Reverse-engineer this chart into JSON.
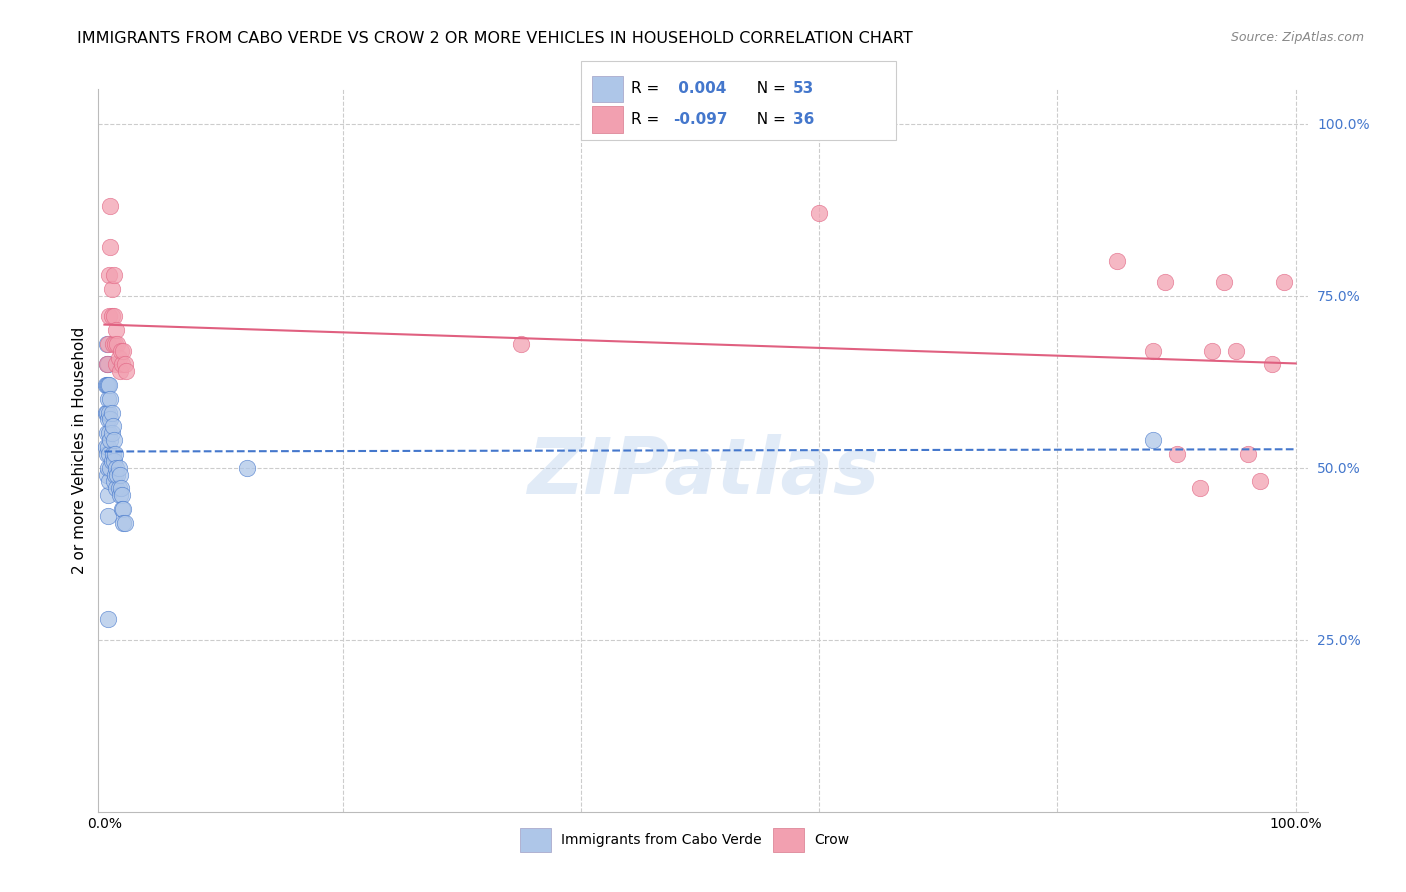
{
  "title": "IMMIGRANTS FROM CABO VERDE VS CROW 2 OR MORE VEHICLES IN HOUSEHOLD CORRELATION CHART",
  "source": "Source: ZipAtlas.com",
  "ylabel": "2 or more Vehicles in Household",
  "color_blue": "#aec6e8",
  "color_pink": "#f2a0b0",
  "trendline_blue": "#4477cc",
  "trendline_pink": "#e06080",
  "watermark": "ZIPatlas",
  "legend_label1": "Immigrants from Cabo Verde",
  "legend_label2": "Crow",
  "blue_x": [
    0.001,
    0.001,
    0.001,
    0.002,
    0.002,
    0.002,
    0.002,
    0.002,
    0.002,
    0.002,
    0.003,
    0.003,
    0.003,
    0.003,
    0.003,
    0.003,
    0.003,
    0.003,
    0.004,
    0.004,
    0.004,
    0.004,
    0.004,
    0.005,
    0.005,
    0.005,
    0.005,
    0.006,
    0.006,
    0.006,
    0.007,
    0.007,
    0.008,
    0.008,
    0.008,
    0.009,
    0.009,
    0.01,
    0.01,
    0.011,
    0.012,
    0.012,
    0.013,
    0.013,
    0.014,
    0.015,
    0.015,
    0.016,
    0.016,
    0.017,
    0.12,
    0.88,
    0.003
  ],
  "blue_y": [
    0.62,
    0.58,
    0.53,
    0.68,
    0.65,
    0.62,
    0.58,
    0.55,
    0.52,
    0.49,
    0.65,
    0.62,
    0.6,
    0.57,
    0.53,
    0.5,
    0.46,
    0.43,
    0.62,
    0.58,
    0.55,
    0.52,
    0.48,
    0.6,
    0.57,
    0.54,
    0.5,
    0.58,
    0.55,
    0.51,
    0.56,
    0.52,
    0.54,
    0.51,
    0.48,
    0.52,
    0.49,
    0.5,
    0.47,
    0.49,
    0.5,
    0.47,
    0.49,
    0.46,
    0.47,
    0.46,
    0.44,
    0.44,
    0.42,
    0.42,
    0.5,
    0.54,
    0.28
  ],
  "pink_x": [
    0.002,
    0.003,
    0.004,
    0.004,
    0.005,
    0.005,
    0.006,
    0.006,
    0.007,
    0.008,
    0.008,
    0.009,
    0.01,
    0.01,
    0.011,
    0.012,
    0.013,
    0.014,
    0.015,
    0.016,
    0.017,
    0.018,
    0.35,
    0.6,
    0.85,
    0.88,
    0.89,
    0.9,
    0.92,
    0.93,
    0.94,
    0.95,
    0.96,
    0.97,
    0.98,
    0.99
  ],
  "pink_y": [
    0.65,
    0.68,
    0.72,
    0.78,
    0.82,
    0.88,
    0.76,
    0.72,
    0.68,
    0.78,
    0.72,
    0.68,
    0.65,
    0.7,
    0.68,
    0.66,
    0.64,
    0.67,
    0.65,
    0.67,
    0.65,
    0.64,
    0.68,
    0.87,
    0.8,
    0.67,
    0.77,
    0.52,
    0.47,
    0.67,
    0.77,
    0.67,
    0.52,
    0.48,
    0.65,
    0.77
  ]
}
